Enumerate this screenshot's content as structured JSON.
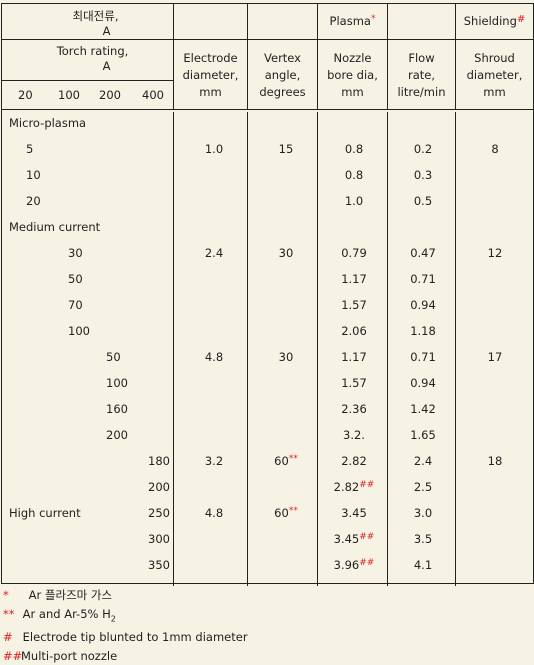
{
  "header": {
    "korean_label": "최대전류,",
    "korean_unit": "A",
    "torch_rating": "Torch rating,",
    "torch_unit": "A",
    "current_ticks": [
      "20",
      "100",
      "200",
      "400"
    ],
    "plasma": "Plasma",
    "plasma_mark": "*",
    "shielding": "Shielding",
    "shielding_mark": "#",
    "electrode": [
      "Electrode",
      "diameter,",
      "mm"
    ],
    "vertex": [
      "Vertex",
      "angle,",
      "degrees"
    ],
    "nozzle": [
      "Nozzle",
      "bore dia,",
      "mm"
    ],
    "flow": [
      "Flow",
      "rate,",
      "litre/min"
    ],
    "shroud": [
      "Shroud",
      "diameter,",
      "mm"
    ]
  },
  "sections": {
    "micro": "Micro-plasma",
    "medium": "Medium current",
    "high": "High current"
  },
  "rows": [
    {
      "current": "5",
      "electrode": "1.0",
      "vertex": "15",
      "nozzle": "0.8",
      "nozzle_mark": "",
      "flow": "0.2",
      "shroud": "8"
    },
    {
      "current": "10",
      "electrode": "",
      "vertex": "",
      "nozzle": "0.8",
      "nozzle_mark": "",
      "flow": "0.3",
      "shroud": ""
    },
    {
      "current": "20",
      "electrode": "",
      "vertex": "",
      "nozzle": "1.0",
      "nozzle_mark": "",
      "flow": "0.5",
      "shroud": ""
    },
    {
      "current": "30",
      "electrode": "2.4",
      "vertex": "30",
      "nozzle": "0.79",
      "nozzle_mark": "",
      "flow": "0.47",
      "shroud": "12"
    },
    {
      "current": "50",
      "electrode": "",
      "vertex": "",
      "nozzle": "1.17",
      "nozzle_mark": "",
      "flow": "0.71",
      "shroud": ""
    },
    {
      "current": "70",
      "electrode": "",
      "vertex": "",
      "nozzle": "1.57",
      "nozzle_mark": "",
      "flow": "0.94",
      "shroud": ""
    },
    {
      "current": "100",
      "electrode": "",
      "vertex": "",
      "nozzle": "2.06",
      "nozzle_mark": "",
      "flow": "1.18",
      "shroud": ""
    },
    {
      "current": "50",
      "electrode": "4.8",
      "vertex": "30",
      "nozzle": "1.17",
      "nozzle_mark": "",
      "flow": "0.71",
      "shroud": "17"
    },
    {
      "current": "100",
      "electrode": "",
      "vertex": "",
      "nozzle": "1.57",
      "nozzle_mark": "",
      "flow": "0.94",
      "shroud": ""
    },
    {
      "current": "160",
      "electrode": "",
      "vertex": "",
      "nozzle": "2.36",
      "nozzle_mark": "",
      "flow": "1.42",
      "shroud": ""
    },
    {
      "current": "200",
      "electrode": "",
      "vertex": "",
      "nozzle": "3.2.",
      "nozzle_mark": "",
      "flow": "1.65",
      "shroud": ""
    },
    {
      "current": "180",
      "electrode": "3.2",
      "vertex": "60",
      "vertex_mark": "**",
      "nozzle": "2.82",
      "nozzle_mark": "",
      "flow": "2.4",
      "shroud": "18"
    },
    {
      "current": "200",
      "electrode": "",
      "vertex": "",
      "nozzle": "2.82",
      "nozzle_mark": "##",
      "flow": "2.5",
      "shroud": ""
    },
    {
      "current": "250",
      "electrode": "4.8",
      "vertex": "60",
      "vertex_mark": "**",
      "nozzle": "3.45",
      "nozzle_mark": "",
      "flow": "3.0",
      "shroud": ""
    },
    {
      "current": "300",
      "electrode": "",
      "vertex": "",
      "nozzle": "3.45",
      "nozzle_mark": "##",
      "flow": "3.5",
      "shroud": ""
    },
    {
      "current": "350",
      "electrode": "",
      "vertex": "",
      "nozzle": "3.96",
      "nozzle_mark": "##",
      "flow": "4.1",
      "shroud": ""
    }
  ],
  "notes": [
    {
      "mark": "*",
      "text": "Ar 플라즈마 가스"
    },
    {
      "mark": "**",
      "text": "Ar and Ar-5% H",
      "sub": "2"
    },
    {
      "mark": "#",
      "text": "Electrode tip blunted to 1mm diameter"
    },
    {
      "mark": "##",
      "text": "Multi-port nozzle"
    }
  ]
}
